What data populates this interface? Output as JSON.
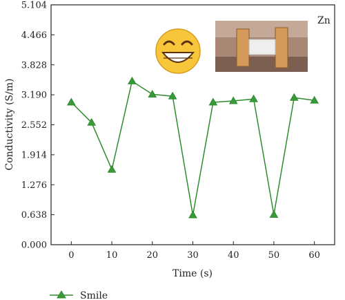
{
  "chart_data": {
    "type": "line",
    "x": [
      0,
      5,
      10,
      15,
      20,
      25,
      30,
      35,
      40,
      45,
      50,
      55,
      60
    ],
    "series": [
      {
        "name": "Smile",
        "values": [
          3.03,
          2.6,
          1.6,
          3.48,
          3.2,
          3.16,
          0.63,
          3.03,
          3.06,
          3.1,
          0.64,
          3.13,
          3.07
        ]
      }
    ],
    "xlabel": "Time (s)",
    "ylabel": "Conductivity (S/m)",
    "xlim": [
      -5,
      65
    ],
    "ylim": [
      0,
      5.104
    ],
    "xticks": [
      0,
      10,
      20,
      30,
      40,
      50,
      60
    ],
    "yticks": [
      0.0,
      0.638,
      1.276,
      1.914,
      2.552,
      3.19,
      3.828,
      4.466,
      5.104
    ],
    "ytick_labels": [
      "0.000",
      "0.638",
      "1.276",
      "1.914",
      "2.552",
      "3.190",
      "3.828",
      "4.466",
      "5.104"
    ],
    "annotation": "Zn",
    "grid": false,
    "legend": "bottom-left, outside",
    "colors": {
      "series": "#2e8b2e",
      "axis": "#222222"
    },
    "icons": [
      "smiling-face-emoji",
      "wrist-sensor-photo"
    ]
  }
}
